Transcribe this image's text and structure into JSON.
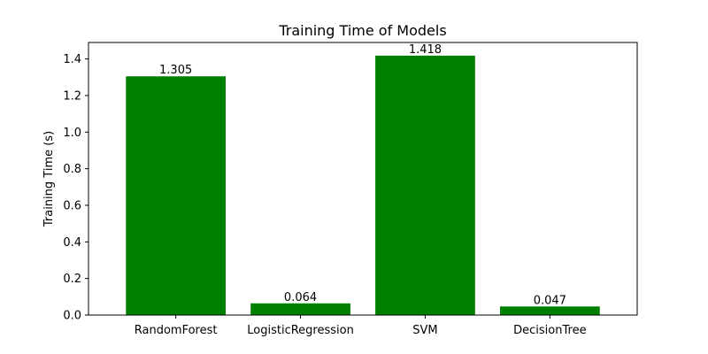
{
  "chart_data": {
    "type": "bar",
    "title": "Training Time of Models",
    "xlabel": "",
    "ylabel": "Training Time (s)",
    "categories": [
      "RandomForest",
      "LogisticRegression",
      "SVM",
      "DecisionTree"
    ],
    "values": [
      1.305,
      0.064,
      1.418,
      0.047
    ],
    "value_labels": [
      "1.305",
      "0.064",
      "1.418",
      "0.047"
    ],
    "ylim": [
      0,
      1.49
    ],
    "yticks": [
      0.0,
      0.2,
      0.4,
      0.6,
      0.8,
      1.0,
      1.2,
      1.4
    ],
    "ytick_labels": [
      "0.0",
      "0.2",
      "0.4",
      "0.6",
      "0.8",
      "1.0",
      "1.2",
      "1.4"
    ],
    "grid": false,
    "bar_color": "#008000"
  }
}
